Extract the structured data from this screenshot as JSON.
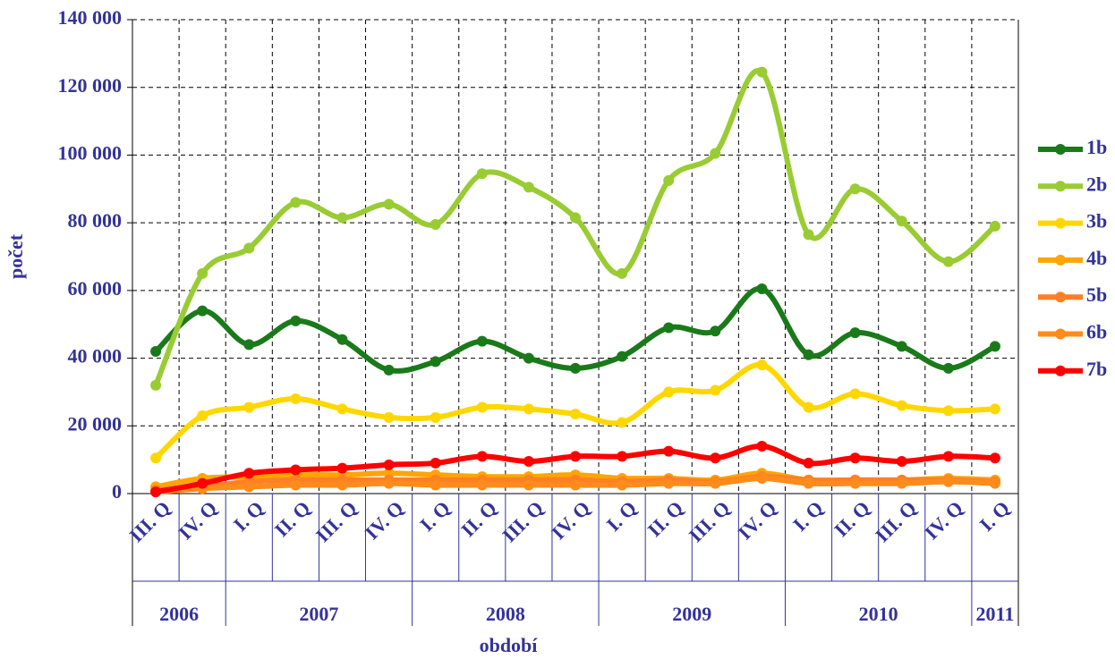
{
  "chart_data": {
    "type": "line",
    "categories": [
      "III. Q",
      "IV. Q",
      "I. Q",
      "II. Q",
      "III. Q",
      "IV. Q",
      "I. Q",
      "II. Q",
      "III. Q",
      "IV. Q",
      "I. Q",
      "II. Q",
      "III. Q",
      "IV. Q",
      "I. Q",
      "II. Q",
      "III. Q",
      "IV. Q",
      "I. Q"
    ],
    "year_groups": [
      {
        "label": "2006",
        "count": 2
      },
      {
        "label": "2007",
        "count": 4
      },
      {
        "label": "2008",
        "count": 4
      },
      {
        "label": "2009",
        "count": 4
      },
      {
        "label": "2010",
        "count": 4
      },
      {
        "label": "2011",
        "count": 1
      }
    ],
    "x_label": "období",
    "y_label": "počet",
    "ylim": [
      0,
      140000
    ],
    "yticks": [
      0,
      {
        "value": 20000,
        "label": "20 000"
      },
      {
        "value": 40000,
        "label": "40 000"
      },
      {
        "value": 60000,
        "label": "60 000"
      },
      {
        "value": 80000,
        "label": "80 000"
      },
      {
        "value": 100000,
        "label": "100 000"
      },
      {
        "value": 120000,
        "label": "120 000"
      },
      {
        "value": 140000,
        "label": "140 000"
      }
    ],
    "grid": true,
    "legend": "right",
    "series": [
      {
        "name": "1b",
        "color": "#1a7a1a",
        "values": [
          42000,
          54000,
          44000,
          51000,
          45500,
          36500,
          39000,
          45000,
          40000,
          37000,
          40500,
          49000,
          48000,
          60500,
          41000,
          47500,
          43500,
          37000,
          43500
        ]
      },
      {
        "name": "2b",
        "color": "#99cc33",
        "values": [
          32000,
          65000,
          72500,
          86000,
          81500,
          85500,
          79500,
          94500,
          90500,
          81500,
          65000,
          92500,
          100500,
          124500,
          76500,
          90000,
          80500,
          68500,
          79000
        ]
      },
      {
        "name": "3b",
        "color": "#ffd700",
        "values": [
          10500,
          23000,
          25500,
          28000,
          25000,
          22500,
          22500,
          25500,
          25000,
          23500,
          21000,
          30000,
          30500,
          38000,
          25500,
          29500,
          26000,
          24500,
          25000
        ]
      },
      {
        "name": "4b",
        "color": "#ffa500",
        "values": [
          2000,
          4500,
          5000,
          5500,
          5500,
          6000,
          5500,
          5000,
          5000,
          5500,
          4500,
          4500,
          4000,
          6000,
          4000,
          4000,
          4000,
          4500,
          4000
        ]
      },
      {
        "name": "5b",
        "color": "#ff7f27",
        "values": [
          1000,
          2000,
          3500,
          4000,
          4000,
          4000,
          4000,
          4000,
          4000,
          4000,
          3500,
          4000,
          3500,
          5000,
          4000,
          4000,
          4000,
          4000,
          3500
        ]
      },
      {
        "name": "6b",
        "color": "#ff8c1a",
        "values": [
          500,
          1500,
          2000,
          2500,
          2500,
          3000,
          2500,
          2500,
          2500,
          2500,
          2500,
          3000,
          3000,
          4500,
          3000,
          3000,
          3000,
          3500,
          3000
        ]
      },
      {
        "name": "7b",
        "color": "#ff0000",
        "values": [
          500,
          3000,
          6000,
          7000,
          7500,
          8500,
          9000,
          11000,
          9500,
          11000,
          11000,
          12500,
          10500,
          14000,
          9000,
          10500,
          9500,
          11000,
          10500
        ]
      }
    ]
  }
}
